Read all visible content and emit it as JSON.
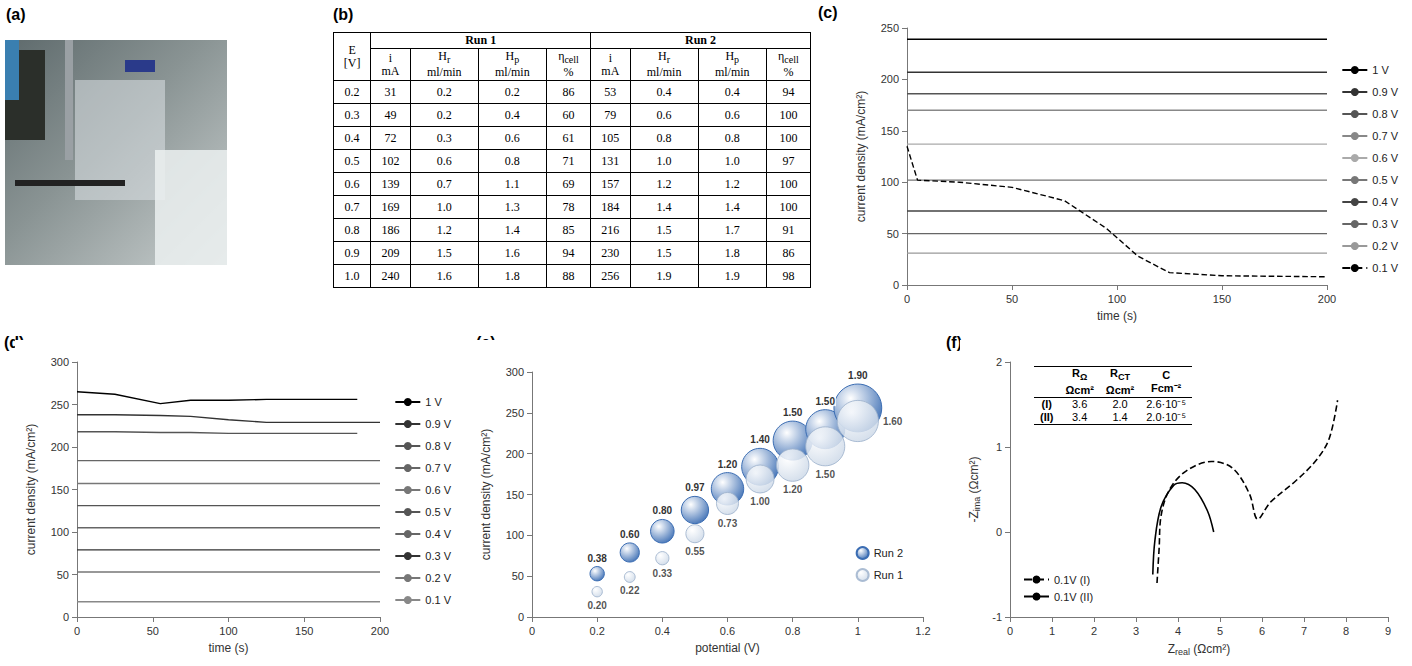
{
  "photo": {
    "letter": "(a)"
  },
  "table": {
    "letter": "(b)",
    "header": {
      "e": {
        "symbol": "E",
        "unit": "[V]"
      },
      "runs": [
        "Run 1",
        "Run 2"
      ],
      "columns": [
        {
          "symbol": "i",
          "unit": "mA"
        },
        {
          "symbol": "H",
          "sub": "r",
          "unit": "ml/min"
        },
        {
          "symbol": "H",
          "sub": "p",
          "unit": "ml/min"
        },
        {
          "symbol": "η",
          "sub": "cell",
          "unit": "%"
        }
      ]
    },
    "rows": [
      [
        "0.2",
        "31",
        "0.2",
        "0.2",
        "86",
        "53",
        "0.4",
        "0.4",
        "94"
      ],
      [
        "0.3",
        "49",
        "0.2",
        "0.4",
        "60",
        "79",
        "0.6",
        "0.6",
        "100"
      ],
      [
        "0.4",
        "72",
        "0.3",
        "0.6",
        "61",
        "105",
        "0.8",
        "0.8",
        "100"
      ],
      [
        "0.5",
        "102",
        "0.6",
        "0.8",
        "71",
        "131",
        "1.0",
        "1.0",
        "97"
      ],
      [
        "0.6",
        "139",
        "0.7",
        "1.1",
        "69",
        "157",
        "1.2",
        "1.2",
        "100"
      ],
      [
        "0.7",
        "169",
        "1.0",
        "1.3",
        "78",
        "184",
        "1.4",
        "1.4",
        "100"
      ],
      [
        "0.8",
        "186",
        "1.2",
        "1.4",
        "85",
        "216",
        "1.5",
        "1.7",
        "91"
      ],
      [
        "0.9",
        "209",
        "1.5",
        "1.6",
        "94",
        "230",
        "1.5",
        "1.8",
        "86"
      ],
      [
        "1.0",
        "240",
        "1.6",
        "1.8",
        "88",
        "256",
        "1.9",
        "1.9",
        "98"
      ]
    ]
  },
  "chart_data": [
    {
      "letter": "(c)",
      "type": "line",
      "xlabel": "time (s)",
      "ylabel": "current density (mA/cm²)",
      "x": [
        0,
        5,
        25,
        50,
        75,
        95,
        110,
        125,
        150,
        200
      ],
      "xlim": [
        0,
        200
      ],
      "xticks": [
        0,
        50,
        100,
        150,
        200
      ],
      "ylim": [
        0,
        250
      ],
      "yticks": [
        0,
        50,
        100,
        150,
        200,
        250
      ],
      "grid": false,
      "legend": "right",
      "series": [
        {
          "name": "1 V",
          "color": "#000000",
          "values": [
            239,
            239,
            239,
            239,
            239,
            239,
            239,
            239,
            239,
            239
          ]
        },
        {
          "name": "0.9 V",
          "color": "#333333",
          "values": [
            207,
            207,
            207,
            207,
            207,
            207,
            207,
            207,
            207,
            207
          ]
        },
        {
          "name": "0.8 V",
          "color": "#555555",
          "values": [
            186,
            186,
            186,
            186,
            186,
            186,
            186,
            186,
            186,
            186
          ]
        },
        {
          "name": "0.7 V",
          "color": "#888888",
          "values": [
            170,
            170,
            170,
            170,
            170,
            170,
            170,
            170,
            170,
            170
          ]
        },
        {
          "name": "0.6 V",
          "color": "#aaaaaa",
          "values": [
            137,
            137,
            137,
            137,
            137,
            137,
            137,
            137,
            137,
            137
          ]
        },
        {
          "name": "0.5 V",
          "color": "#777777",
          "values": [
            102,
            102,
            102,
            102,
            102,
            102,
            102,
            102,
            102,
            102
          ]
        },
        {
          "name": "0.4 V",
          "color": "#444444",
          "values": [
            72,
            72,
            72,
            72,
            72,
            72,
            72,
            72,
            72,
            72
          ]
        },
        {
          "name": "0.3 V",
          "color": "#666666",
          "values": [
            50,
            50,
            50,
            50,
            50,
            50,
            50,
            50,
            50,
            50
          ]
        },
        {
          "name": "0.2 V",
          "color": "#999999",
          "values": [
            31,
            31,
            31,
            31,
            31,
            31,
            31,
            31,
            31,
            31
          ]
        },
        {
          "name": "0.1 V",
          "color": "#000000",
          "line_style": "dashed",
          "values": [
            135,
            102,
            100,
            95,
            82,
            55,
            28,
            12,
            9,
            8
          ]
        }
      ]
    },
    {
      "letter": "(d)",
      "type": "line",
      "xlabel": "time (s)",
      "ylabel": "current density (mA/cm²)",
      "x": [
        0,
        25,
        55,
        75,
        100,
        125,
        185,
        200
      ],
      "xlim": [
        0,
        200
      ],
      "xticks": [
        0,
        50,
        100,
        150,
        200
      ],
      "ylim": [
        0,
        300
      ],
      "yticks": [
        0,
        50,
        100,
        150,
        200,
        250,
        300
      ],
      "grid": false,
      "legend": "right",
      "series": [
        {
          "name": "1 V",
          "color": "#000000",
          "values": [
            265,
            262,
            251,
            255,
            255,
            256,
            256,
            null
          ]
        },
        {
          "name": "0.9 V",
          "color": "#333333",
          "values": [
            238,
            238,
            237,
            236,
            232,
            229,
            229,
            229
          ]
        },
        {
          "name": "0.8 V",
          "color": "#555555",
          "values": [
            218,
            218,
            217,
            217,
            216,
            216,
            216,
            null
          ]
        },
        {
          "name": "0.7 V",
          "color": "#666666",
          "values": [
            184,
            184,
            184,
            184,
            184,
            184,
            184,
            184
          ]
        },
        {
          "name": "0.6 V",
          "color": "#777777",
          "values": [
            157,
            157,
            157,
            157,
            157,
            157,
            157,
            157
          ]
        },
        {
          "name": "0.5 V",
          "color": "#555555",
          "values": [
            131,
            131,
            131,
            131,
            131,
            131,
            131,
            131
          ]
        },
        {
          "name": "0.4 V",
          "color": "#666666",
          "values": [
            105,
            105,
            105,
            105,
            105,
            105,
            105,
            105
          ]
        },
        {
          "name": "0.3 V",
          "color": "#333333",
          "values": [
            79,
            79,
            79,
            79,
            79,
            79,
            79,
            79
          ]
        },
        {
          "name": "0.2 V",
          "color": "#777777",
          "values": [
            53,
            53,
            53,
            53,
            53,
            53,
            53,
            53
          ]
        },
        {
          "name": "0.1 V",
          "color": "#888888",
          "values": [
            18,
            18,
            18,
            18,
            18,
            18,
            18,
            18
          ]
        }
      ]
    },
    {
      "letter": "(e)",
      "type": "scatter",
      "xlabel": "potential (V)",
      "ylabel": "current density (mA/cm²)",
      "xlim": [
        0,
        1.2
      ],
      "xticks": [
        0,
        0.2,
        0.4,
        0.6,
        0.8,
        1,
        1.2
      ],
      "ylim": [
        0,
        300
      ],
      "yticks": [
        0,
        50,
        100,
        150,
        200,
        250,
        300
      ],
      "grid": false,
      "legend": "lower right",
      "data_labels": true,
      "series": [
        {
          "name": "Run 2",
          "color": "#3b6db3",
          "x": [
            0.2,
            0.3,
            0.4,
            0.5,
            0.6,
            0.7,
            0.8,
            0.9,
            1.0
          ],
          "values": [
            53,
            79,
            105,
            131,
            157,
            184,
            216,
            230,
            256
          ],
          "sizes": [
            0.38,
            0.6,
            0.8,
            0.97,
            1.2,
            1.4,
            1.5,
            1.5,
            1.9
          ],
          "size_labels": [
            "0.38",
            "0.60",
            "0.80",
            "0.97",
            "1.20",
            "1.40",
            "1.50",
            "1.50",
            "1.90"
          ]
        },
        {
          "name": "Run 1",
          "color": "#c9d6e6",
          "x": [
            0.2,
            0.3,
            0.4,
            0.5,
            0.6,
            0.7,
            0.8,
            0.9,
            1.0
          ],
          "values": [
            31,
            49,
            72,
            102,
            139,
            169,
            186,
            209,
            240
          ],
          "sizes": [
            0.2,
            0.22,
            0.33,
            0.55,
            0.73,
            1.0,
            1.2,
            1.5,
            1.6
          ],
          "size_labels": [
            "0.20",
            "0.22",
            "0.33",
            "0.55",
            "0.73",
            "1.00",
            "1.20",
            "1.50",
            "1.60"
          ]
        }
      ]
    },
    {
      "letter": "(f)",
      "type": "line",
      "xlabel": {
        "symbol": "Z",
        "sub": "real",
        "unit": "(Ωcm²)"
      },
      "ylabel": {
        "symbol": "-Z",
        "sub": "ima",
        "unit": "(Ωcm²)"
      },
      "xlim": [
        0,
        9
      ],
      "xticks": [
        0,
        1,
        2,
        3,
        4,
        5,
        6,
        7,
        8,
        9
      ],
      "ylim": [
        -1,
        2
      ],
      "yticks": [
        -1,
        0,
        1,
        2
      ],
      "grid": false,
      "legend": "lower left",
      "series": [
        {
          "name": "0.1V (I)",
          "color": "#000000",
          "line_style": "dashed",
          "x": [
            3.5,
            3.55,
            3.6,
            3.8,
            4.2,
            4.8,
            5.3,
            5.7,
            5.9,
            6.2,
            6.8,
            7.3,
            7.6,
            7.8
          ],
          "values": [
            -0.6,
            -0.2,
            0.2,
            0.5,
            0.72,
            0.83,
            0.75,
            0.45,
            0.15,
            0.35,
            0.6,
            0.85,
            1.1,
            1.55
          ]
        },
        {
          "name": "0.1V (II)",
          "color": "#000000",
          "line_style": "solid",
          "x": [
            3.4,
            3.45,
            3.6,
            3.9,
            4.1,
            4.4,
            4.7,
            4.85
          ],
          "values": [
            -0.5,
            -0.1,
            0.3,
            0.55,
            0.58,
            0.5,
            0.25,
            0
          ]
        }
      ],
      "inset_table": {
        "columns": [
          {
            "symbol": "R",
            "sub": "Ω",
            "unit": "Ωcm²"
          },
          {
            "symbol": "R",
            "sub": "CT",
            "unit": "Ωcm²"
          },
          {
            "symbol": "C",
            "unit": "Fcm⁻²"
          }
        ],
        "rows": [
          [
            "(I)",
            "3.6",
            "2.0",
            "2.6·10⁻⁵"
          ],
          [
            "(II)",
            "3.4",
            "1.4",
            "2.0·10⁻⁵"
          ]
        ]
      }
    }
  ]
}
